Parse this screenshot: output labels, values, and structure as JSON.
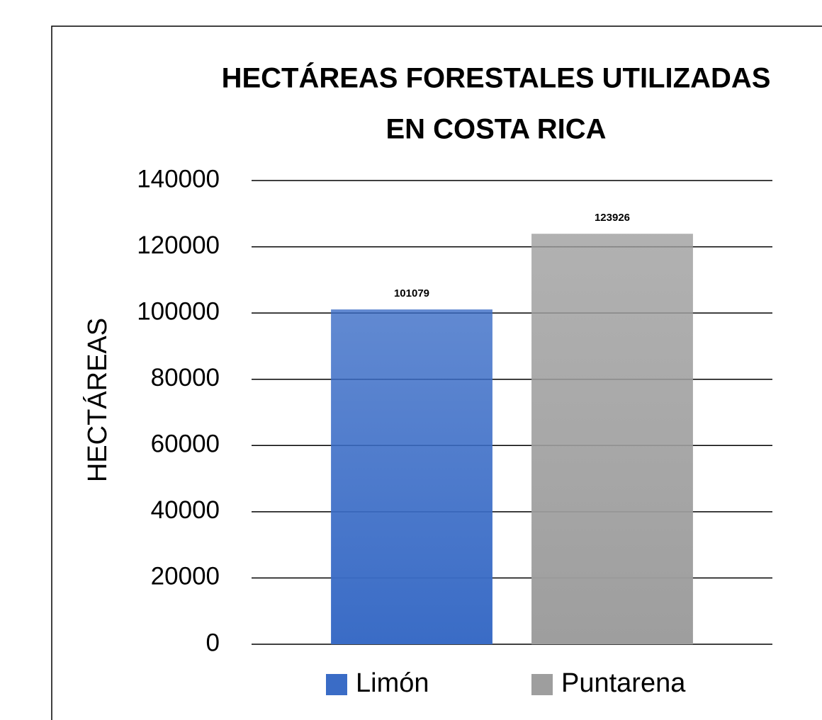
{
  "chart_data": {
    "type": "bar",
    "title": [
      "HECTÁREAS FORESTALES UTILIZADAS",
      "EN COSTA RICA"
    ],
    "y_label": "HECTÁREAS",
    "categories": [
      null
    ],
    "series": [
      {
        "name": "Limón",
        "color": "#3a6cc6",
        "values": [
          101079
        ]
      },
      {
        "name": "Puntarena",
        "color": "#9e9e9e",
        "values": [
          123926
        ]
      }
    ],
    "ylim": [
      0,
      140000
    ],
    "yticks": [
      0,
      20000,
      40000,
      60000,
      80000,
      100000,
      120000,
      140000
    ],
    "grid": true,
    "data_labels": true,
    "legend": "bottom"
  }
}
